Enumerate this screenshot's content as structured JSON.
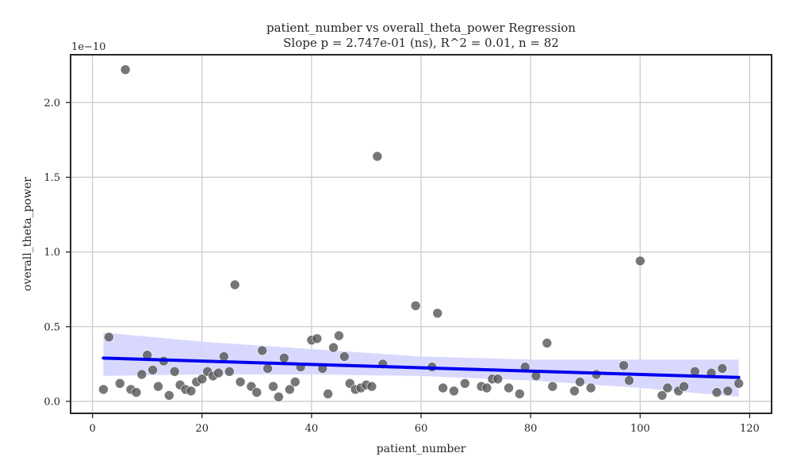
{
  "chart_data": {
    "type": "scatter",
    "title": "patient_number vs overall_theta_power Regression",
    "subtitle": "Slope p = 2.747e-01 (ns), R^2 = 0.01, n = 82",
    "xlabel": "patient_number",
    "ylabel": "overall_theta_power",
    "y_offset_label": "1e−10",
    "xlim": [
      -4,
      124
    ],
    "ylim": [
      -0.08,
      2.32
    ],
    "xticks": [
      0,
      20,
      40,
      60,
      80,
      100,
      120
    ],
    "xtick_labels": [
      "0",
      "20",
      "40",
      "60",
      "80",
      "100",
      "120"
    ],
    "yticks": [
      0.0,
      0.5,
      1.0,
      1.5,
      2.0
    ],
    "ytick_labels": [
      "0.0",
      "0.5",
      "1.0",
      "1.5",
      "2.0"
    ],
    "grid": true,
    "colors": {
      "points": "#555555",
      "regression_line": "#0000ee",
      "confidence_band": "#d4d4ff"
    },
    "points": [
      {
        "x": 2,
        "y": 0.08
      },
      {
        "x": 3,
        "y": 0.43
      },
      {
        "x": 5,
        "y": 0.12
      },
      {
        "x": 6,
        "y": 2.22
      },
      {
        "x": 7,
        "y": 0.08
      },
      {
        "x": 8,
        "y": 0.06
      },
      {
        "x": 9,
        "y": 0.18
      },
      {
        "x": 10,
        "y": 0.31
      },
      {
        "x": 11,
        "y": 0.21
      },
      {
        "x": 12,
        "y": 0.1
      },
      {
        "x": 13,
        "y": 0.27
      },
      {
        "x": 14,
        "y": 0.04
      },
      {
        "x": 15,
        "y": 0.2
      },
      {
        "x": 16,
        "y": 0.11
      },
      {
        "x": 17,
        "y": 0.08
      },
      {
        "x": 18,
        "y": 0.07
      },
      {
        "x": 19,
        "y": 0.13
      },
      {
        "x": 20,
        "y": 0.15
      },
      {
        "x": 21,
        "y": 0.2
      },
      {
        "x": 22,
        "y": 0.17
      },
      {
        "x": 23,
        "y": 0.19
      },
      {
        "x": 24,
        "y": 0.3
      },
      {
        "x": 25,
        "y": 0.2
      },
      {
        "x": 26,
        "y": 0.78
      },
      {
        "x": 27,
        "y": 0.13
      },
      {
        "x": 29,
        "y": 0.1
      },
      {
        "x": 30,
        "y": 0.06
      },
      {
        "x": 31,
        "y": 0.34
      },
      {
        "x": 32,
        "y": 0.22
      },
      {
        "x": 33,
        "y": 0.1
      },
      {
        "x": 34,
        "y": 0.03
      },
      {
        "x": 35,
        "y": 0.29
      },
      {
        "x": 36,
        "y": 0.08
      },
      {
        "x": 37,
        "y": 0.13
      },
      {
        "x": 38,
        "y": 0.23
      },
      {
        "x": 40,
        "y": 0.41
      },
      {
        "x": 41,
        "y": 0.42
      },
      {
        "x": 42,
        "y": 0.22
      },
      {
        "x": 43,
        "y": 0.05
      },
      {
        "x": 44,
        "y": 0.36
      },
      {
        "x": 45,
        "y": 0.44
      },
      {
        "x": 46,
        "y": 0.3
      },
      {
        "x": 47,
        "y": 0.12
      },
      {
        "x": 48,
        "y": 0.08
      },
      {
        "x": 49,
        "y": 0.09
      },
      {
        "x": 50,
        "y": 0.11
      },
      {
        "x": 51,
        "y": 0.1
      },
      {
        "x": 52,
        "y": 1.64
      },
      {
        "x": 53,
        "y": 0.25
      },
      {
        "x": 59,
        "y": 0.64
      },
      {
        "x": 62,
        "y": 0.23
      },
      {
        "x": 63,
        "y": 0.59
      },
      {
        "x": 64,
        "y": 0.09
      },
      {
        "x": 66,
        "y": 0.07
      },
      {
        "x": 68,
        "y": 0.12
      },
      {
        "x": 71,
        "y": 0.1
      },
      {
        "x": 72,
        "y": 0.09
      },
      {
        "x": 73,
        "y": 0.15
      },
      {
        "x": 74,
        "y": 0.15
      },
      {
        "x": 76,
        "y": 0.09
      },
      {
        "x": 78,
        "y": 0.05
      },
      {
        "x": 79,
        "y": 0.23
      },
      {
        "x": 81,
        "y": 0.17
      },
      {
        "x": 83,
        "y": 0.39
      },
      {
        "x": 84,
        "y": 0.1
      },
      {
        "x": 88,
        "y": 0.07
      },
      {
        "x": 89,
        "y": 0.13
      },
      {
        "x": 91,
        "y": 0.09
      },
      {
        "x": 92,
        "y": 0.18
      },
      {
        "x": 97,
        "y": 0.24
      },
      {
        "x": 98,
        "y": 0.14
      },
      {
        "x": 100,
        "y": 0.94
      },
      {
        "x": 104,
        "y": 0.04
      },
      {
        "x": 105,
        "y": 0.09
      },
      {
        "x": 107,
        "y": 0.07
      },
      {
        "x": 108,
        "y": 0.1
      },
      {
        "x": 110,
        "y": 0.2
      },
      {
        "x": 113,
        "y": 0.19
      },
      {
        "x": 114,
        "y": 0.06
      },
      {
        "x": 115,
        "y": 0.22
      },
      {
        "x": 116,
        "y": 0.07
      },
      {
        "x": 118,
        "y": 0.12
      }
    ],
    "regression_line": {
      "x": [
        2,
        118
      ],
      "y": [
        0.29,
        0.16
      ]
    },
    "confidence_band": {
      "x": [
        2,
        20,
        40,
        60,
        80,
        100,
        118
      ],
      "upper": [
        0.46,
        0.4,
        0.35,
        0.3,
        0.28,
        0.28,
        0.28
      ],
      "lower": [
        0.17,
        0.18,
        0.18,
        0.17,
        0.14,
        0.09,
        0.03
      ]
    }
  }
}
